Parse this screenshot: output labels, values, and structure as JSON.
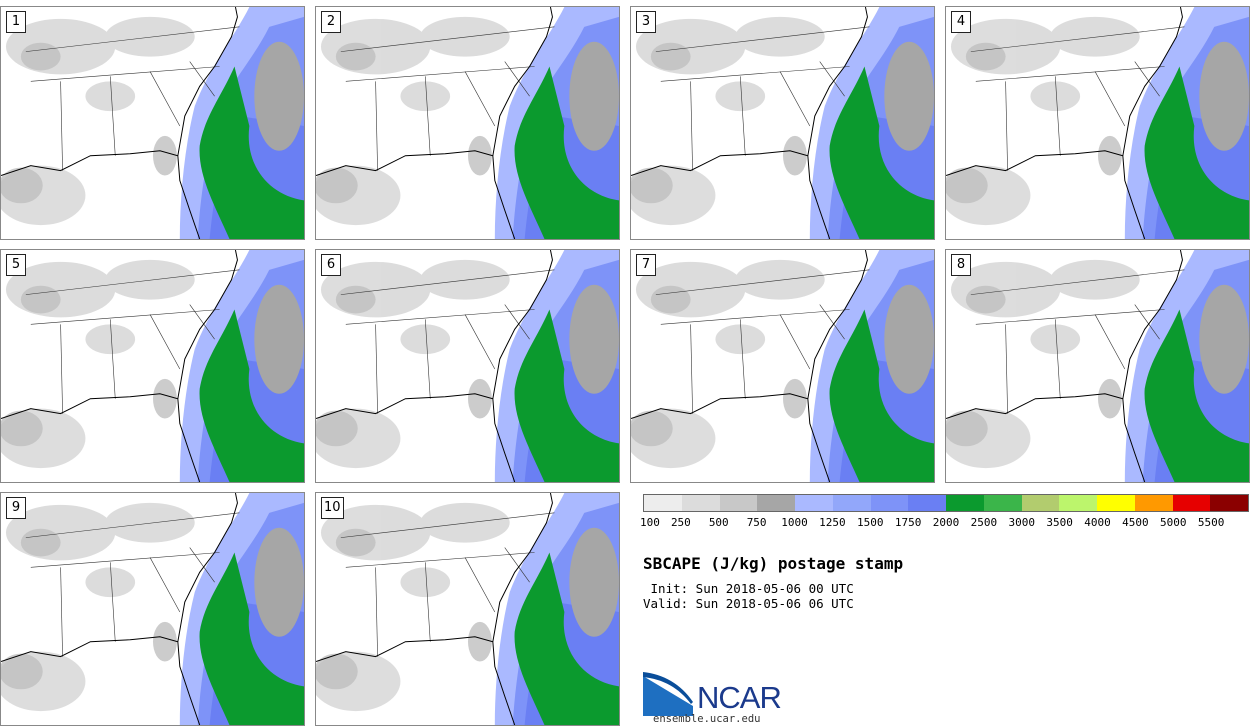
{
  "title": "SBCAPE (J/kg) postage stamp",
  "init": " Init: Sun 2018-05-06 00 UTC",
  "valid": "Valid: Sun 2018-05-06 06 UTC",
  "logo": {
    "name": "NCAR",
    "url": "ensemble.ucar.edu"
  },
  "members": [
    "1",
    "2",
    "3",
    "4",
    "5",
    "6",
    "7",
    "8",
    "9",
    "10"
  ],
  "colorbar": {
    "labels": [
      "100",
      "250",
      "500",
      "750",
      "1000",
      "1250",
      "1500",
      "1750",
      "2000",
      "2500",
      "3000",
      "3500",
      "4000",
      "4500",
      "5000",
      "5500"
    ],
    "colors": [
      "#ededed",
      "#dcdcdc",
      "#c8c8c8",
      "#a6a6a6",
      "#aab9ff",
      "#92a7fa",
      "#7e93f8",
      "#6a7ff3",
      "#0b9a2e",
      "#3bb54a",
      "#b2cc6e",
      "#bcf56c",
      "#ffff00",
      "#ff9900",
      "#e60000",
      "#8b0000"
    ]
  }
}
